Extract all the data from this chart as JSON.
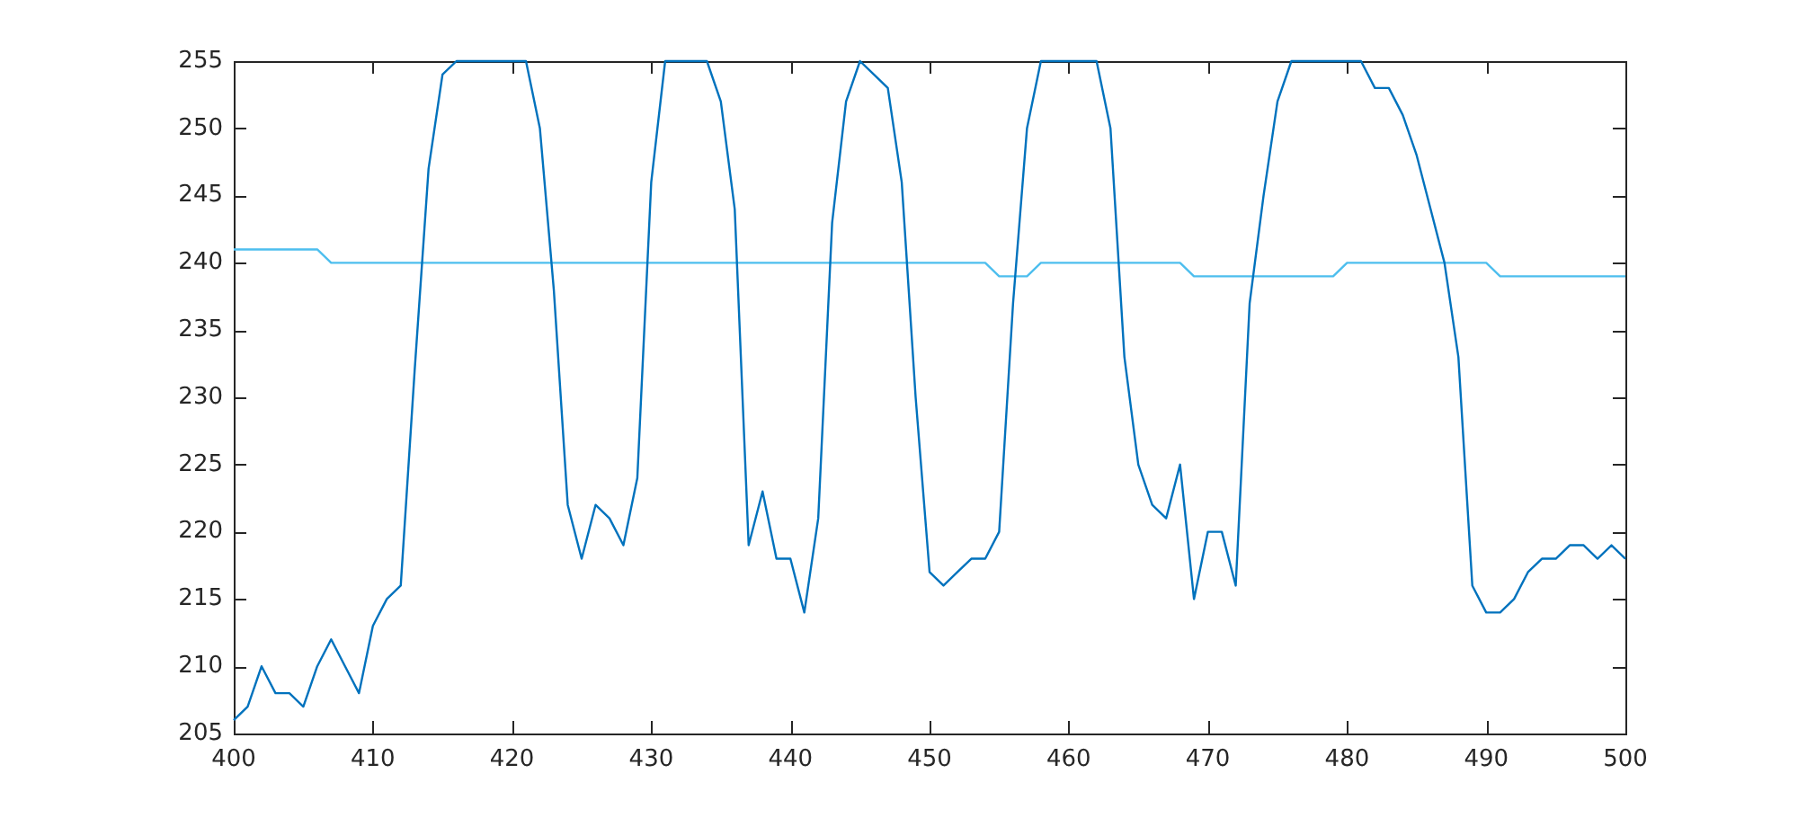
{
  "chart_data": {
    "type": "line",
    "x": [
      400,
      401,
      402,
      403,
      404,
      405,
      406,
      407,
      408,
      409,
      410,
      411,
      412,
      413,
      414,
      415,
      416,
      417,
      418,
      419,
      420,
      421,
      422,
      423,
      424,
      425,
      426,
      427,
      428,
      429,
      430,
      431,
      432,
      433,
      434,
      435,
      436,
      437,
      438,
      439,
      440,
      441,
      442,
      443,
      444,
      445,
      446,
      447,
      448,
      449,
      450,
      451,
      452,
      453,
      454,
      455,
      456,
      457,
      458,
      459,
      460,
      461,
      462,
      463,
      464,
      465,
      466,
      467,
      468,
      469,
      470,
      471,
      472,
      473,
      474,
      475,
      476,
      477,
      478,
      479,
      480,
      481,
      482,
      483,
      484,
      485,
      486,
      487,
      488,
      489,
      490,
      491,
      492,
      493,
      494,
      495,
      496,
      497,
      498,
      499,
      500
    ],
    "series": [
      {
        "color": "#0072bd",
        "values": [
          206,
          207,
          210,
          208,
          208,
          207,
          210,
          212,
          210,
          208,
          213,
          215,
          216,
          232,
          247,
          254,
          255,
          255,
          255,
          255,
          255,
          255,
          250,
          238,
          222,
          218,
          222,
          221,
          219,
          224,
          246,
          255,
          255,
          255,
          255,
          252,
          244,
          219,
          223,
          218,
          218,
          214,
          221,
          243,
          252,
          255,
          254,
          253,
          246,
          230,
          217,
          216,
          217,
          218,
          218,
          220,
          237,
          250,
          255,
          255,
          255,
          255,
          255,
          250,
          233,
          225,
          222,
          221,
          225,
          215,
          220,
          220,
          216,
          237,
          245,
          252,
          255,
          255,
          255,
          255,
          255,
          255,
          253,
          253,
          251,
          248,
          244,
          240,
          233,
          216,
          214,
          214,
          215,
          217,
          218,
          218,
          219,
          219,
          218,
          219,
          218
        ]
      },
      {
        "color": "#4dbeee",
        "values": [
          241,
          241,
          241,
          241,
          241,
          241,
          241,
          240,
          240,
          240,
          240,
          240,
          240,
          240,
          240,
          240,
          240,
          240,
          240,
          240,
          240,
          240,
          240,
          240,
          240,
          240,
          240,
          240,
          240,
          240,
          240,
          240,
          240,
          240,
          240,
          240,
          240,
          240,
          240,
          240,
          240,
          240,
          240,
          240,
          240,
          240,
          240,
          240,
          240,
          240,
          240,
          240,
          240,
          240,
          240,
          239,
          239,
          239,
          240,
          240,
          240,
          240,
          240,
          240,
          240,
          240,
          240,
          240,
          240,
          239,
          239,
          239,
          239,
          239,
          239,
          239,
          239,
          239,
          239,
          239,
          240,
          240,
          240,
          240,
          240,
          240,
          240,
          240,
          240,
          240,
          240,
          239,
          239,
          239,
          239,
          239,
          239,
          239,
          239,
          239,
          239
        ]
      }
    ],
    "xlim": [
      400,
      500
    ],
    "xticks": [
      400,
      410,
      420,
      430,
      440,
      450,
      460,
      470,
      480,
      490,
      500
    ],
    "ylim": [
      205,
      255
    ],
    "yticks": [
      205,
      210,
      215,
      220,
      225,
      230,
      235,
      240,
      245,
      250,
      255
    ],
    "grid": false,
    "legend": false,
    "marker": "none",
    "line_style": "solid"
  }
}
